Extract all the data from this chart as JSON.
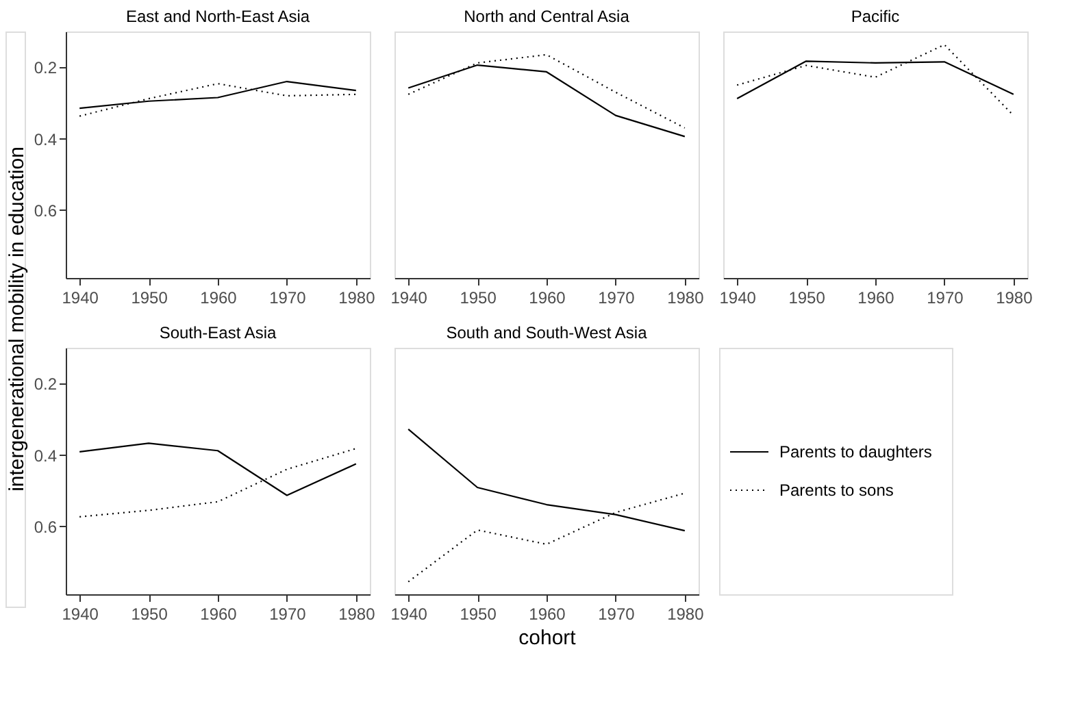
{
  "chart_data": [
    {
      "type": "line",
      "title": "East and North-East Asia",
      "ylabel": "intergenerational mobility in education",
      "x": [
        1940,
        1950,
        1960,
        1970,
        1980
      ],
      "xlim": [
        1938,
        1982
      ],
      "xticks": [
        1940,
        1950,
        1960,
        1970,
        1980
      ],
      "ylim": [
        0.79,
        0.1
      ],
      "yticks": [
        0.2,
        0.4,
        0.6
      ],
      "grid": false,
      "legend": false,
      "series": [
        {
          "color": "#000000",
          "line_style": "solid",
          "values": [
            0.315,
            0.295,
            0.285,
            0.24,
            0.265
          ]
        },
        {
          "color": "#000000",
          "line_style": "dotted",
          "values": [
            0.337,
            0.288,
            0.246,
            0.28,
            0.276
          ]
        }
      ]
    },
    {
      "type": "line",
      "title": "North and Central Asia",
      "x": [
        1940,
        1950,
        1960,
        1970,
        1980
      ],
      "xlim": [
        1938,
        1982
      ],
      "xticks": [
        1940,
        1950,
        1960,
        1970,
        1980
      ],
      "ylim": [
        0.79,
        0.1
      ],
      "tick_labels": "x",
      "grid": false,
      "legend": false,
      "series": [
        {
          "color": "#000000",
          "line_style": "solid",
          "values": [
            0.258,
            0.194,
            0.213,
            0.335,
            0.394
          ]
        },
        {
          "color": "#000000",
          "line_style": "dotted",
          "values": [
            0.276,
            0.188,
            0.165,
            0.27,
            0.37
          ]
        }
      ]
    },
    {
      "type": "line",
      "title": "Pacific",
      "x": [
        1940,
        1950,
        1960,
        1970,
        1980
      ],
      "xlim": [
        1938,
        1982
      ],
      "xticks": [
        1940,
        1950,
        1960,
        1970,
        1980
      ],
      "ylim": [
        0.79,
        0.1
      ],
      "tick_labels": "x",
      "grid": false,
      "legend": false,
      "series": [
        {
          "color": "#000000",
          "line_style": "solid",
          "values": [
            0.288,
            0.183,
            0.188,
            0.185,
            0.276
          ]
        },
        {
          "color": "#000000",
          "line_style": "dotted",
          "values": [
            0.25,
            0.195,
            0.228,
            0.137,
            0.335
          ]
        }
      ]
    },
    {
      "type": "line",
      "title": "South-East Asia",
      "x": [
        1940,
        1950,
        1960,
        1970,
        1980
      ],
      "xlim": [
        1938,
        1982
      ],
      "xticks": [
        1940,
        1950,
        1960,
        1970,
        1980
      ],
      "ylim": [
        0.79,
        0.1
      ],
      "yticks": [
        0.2,
        0.4,
        0.6
      ],
      "grid": false,
      "legend": false,
      "series": [
        {
          "color": "#000000",
          "line_style": "solid",
          "values": [
            0.391,
            0.367,
            0.388,
            0.513,
            0.425
          ]
        },
        {
          "color": "#000000",
          "line_style": "dotted",
          "values": [
            0.573,
            0.555,
            0.531,
            0.44,
            0.382
          ]
        }
      ]
    },
    {
      "type": "line",
      "title": "South and South-West Asia",
      "xlabel": "cohort",
      "x": [
        1940,
        1950,
        1960,
        1970,
        1980
      ],
      "xlim": [
        1938,
        1982
      ],
      "xticks": [
        1940,
        1950,
        1960,
        1970,
        1980
      ],
      "ylim": [
        0.79,
        0.1
      ],
      "tick_labels": "x",
      "grid": false,
      "legend": "right",
      "series": [
        {
          "name": "Parents to daughters",
          "color": "#000000",
          "line_style": "solid",
          "values": [
            0.328,
            0.491,
            0.539,
            0.567,
            0.612
          ]
        },
        {
          "name": "Parents to sons",
          "color": "#000000",
          "line_style": "dotted",
          "values": [
            0.755,
            0.61,
            0.65,
            0.561,
            0.507
          ]
        }
      ]
    }
  ]
}
